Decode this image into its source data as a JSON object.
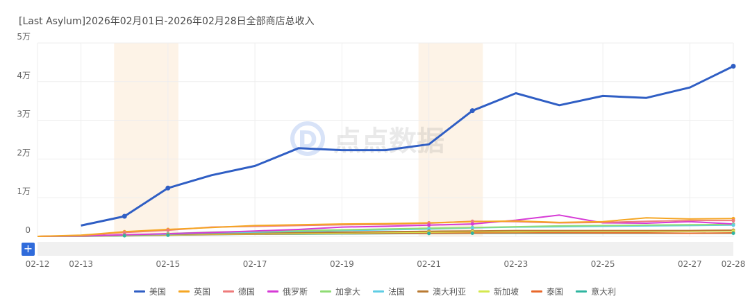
{
  "header": {
    "title": "[Last Asylum]2026年02月01日-2026年02月28日全部商店总收入"
  },
  "controls": {
    "zoom_symbol": "+"
  },
  "watermark": {
    "text": "点点数据",
    "logo_letter": "D"
  },
  "colors": {
    "grid": "#eeeeee",
    "highlight_band": "#fdf3e7",
    "zoom_strip": "#f0f0f0",
    "accent": "#2f6bdb"
  },
  "chart_data": {
    "type": "line",
    "title": "[Last Asylum]2026年02月01日-2026年02月28日全部商店总收入",
    "x": [
      "02-12",
      "02-13",
      "02-14",
      "02-15",
      "02-16",
      "02-17",
      "02-18",
      "02-19",
      "02-20",
      "02-21",
      "02-22",
      "02-23",
      "02-24",
      "02-25",
      "02-26",
      "02-27",
      "02-28"
    ],
    "x_tick_labels": [
      "02-12",
      "02-13",
      "02-15",
      "02-17",
      "02-19",
      "02-21",
      "02-23",
      "02-25",
      "02-27",
      "02-28"
    ],
    "y_tick_labels": [
      "0",
      "1万",
      "2万",
      "3万",
      "4万",
      "5万"
    ],
    "ylim": [
      0,
      50000
    ],
    "grid": true,
    "legend_position": "bottom",
    "highlighted_ranges": [
      [
        "02-14",
        "02-15"
      ],
      [
        "02-21",
        "02-22"
      ]
    ],
    "series": [
      {
        "name": "美国",
        "color": "#2f5ec4",
        "width": 3,
        "values": [
          null,
          2800,
          5200,
          12500,
          15800,
          18200,
          22800,
          22300,
          22300,
          23800,
          32500,
          37000,
          33900,
          36300,
          35800,
          38500,
          44000
        ]
      },
      {
        "name": "英国",
        "color": "#f5a623",
        "width": 2,
        "values": [
          0,
          300,
          1200,
          1800,
          2300,
          2800,
          3000,
          3200,
          3300,
          3500,
          3800,
          4000,
          3600,
          3800,
          4800,
          4500,
          4600
        ]
      },
      {
        "name": "德国",
        "color": "#ee7b7b",
        "width": 2,
        "values": [
          0,
          200,
          1000,
          1600,
          2400,
          2600,
          2800,
          3000,
          3100,
          3400,
          3900,
          3800,
          3500,
          3600,
          3900,
          4100,
          4100
        ]
      },
      {
        "name": "俄罗斯",
        "color": "#d63ad6",
        "width": 2,
        "values": [
          0,
          100,
          400,
          700,
          1000,
          1400,
          1800,
          2400,
          2600,
          2900,
          3200,
          4200,
          5500,
          3500,
          3400,
          3800,
          3200
        ]
      },
      {
        "name": "加拿大",
        "color": "#8fdc74",
        "width": 2,
        "values": [
          0,
          80,
          300,
          700,
          1100,
          1300,
          1500,
          1700,
          1900,
          2100,
          2300,
          2500,
          2700,
          2800,
          2900,
          3000,
          3100
        ]
      },
      {
        "name": "法国",
        "color": "#5fcde4",
        "width": 2,
        "values": [
          0,
          60,
          300,
          600,
          900,
          1100,
          1300,
          1500,
          1700,
          1900,
          2200,
          2400,
          2500,
          2600,
          2700,
          2800,
          2900
        ]
      },
      {
        "name": "澳大利亚",
        "color": "#b97a33",
        "width": 2,
        "values": [
          0,
          50,
          250,
          500,
          700,
          900,
          1000,
          1100,
          1200,
          1300,
          1400,
          1500,
          1500,
          1500,
          1500,
          1500,
          1600
        ]
      },
      {
        "name": "新加坡",
        "color": "#d4e84e",
        "width": 2,
        "values": [
          0,
          40,
          200,
          400,
          600,
          700,
          800,
          900,
          1000,
          1100,
          1200,
          1200,
          1300,
          1300,
          1300,
          1300,
          1400
        ]
      },
      {
        "name": "泰国",
        "color": "#e8682a",
        "width": 2,
        "values": [
          0,
          40,
          200,
          350,
          500,
          600,
          700,
          750,
          800,
          850,
          900,
          950,
          950,
          900,
          900,
          800,
          900
        ]
      },
      {
        "name": "意大利",
        "color": "#2fb5a0",
        "width": 2,
        "values": [
          0,
          30,
          150,
          300,
          450,
          550,
          600,
          650,
          700,
          750,
          800,
          800,
          800,
          800,
          800,
          800,
          800
        ]
      }
    ]
  }
}
